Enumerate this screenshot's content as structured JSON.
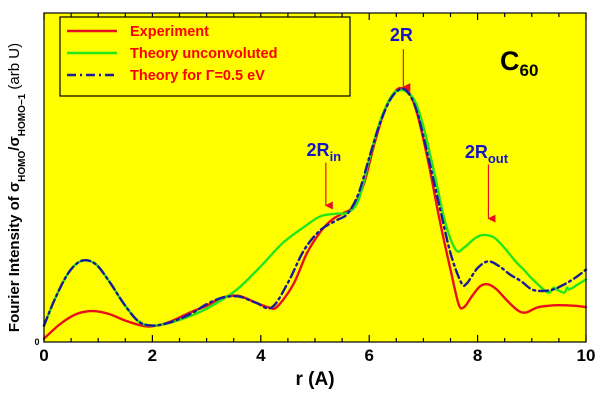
{
  "colors": {
    "plot_background": "#ffff00",
    "experiment": "#e8101c",
    "theory_unconvoluted": "#22e61a",
    "theory_convoluted": "#1a1a9a",
    "annotation_text": "#1515c8",
    "arrow": "#e8101c",
    "legend_text": "#ff0000"
  },
  "chart_data": {
    "type": "line",
    "title": "",
    "xlabel": "r (A)",
    "ylabel": {
      "prefix": "Fourier Intensity of σ",
      "sub1": "HOMO",
      "slash": "/σ",
      "sub2": "HOMO−1",
      "suffix": " (arb U)"
    },
    "xlim": [
      0,
      10
    ],
    "ylim": [
      0,
      1.0
    ],
    "x_ticks": [
      "0",
      "2",
      "4",
      "6",
      "8",
      "10"
    ],
    "y_tick_labels": [
      "0"
    ],
    "grid": false,
    "legend_position": "top-left",
    "legend": [
      "Experiment",
      "Theory unconvoluted",
      "Theory for Γ=0.5 eV"
    ],
    "molecule_label": {
      "main": "C",
      "sub": "60"
    },
    "annotations": [
      {
        "main": "2R",
        "sub": "",
        "x": 6.63,
        "y_text": 0.915,
        "arrow_from": 0.89,
        "arrow_to": 0.775
      },
      {
        "main": "2R",
        "sub": "in",
        "x": 5.2,
        "y_text": 0.565,
        "arrow_from": 0.545,
        "arrow_to": 0.415
      },
      {
        "main": "2R",
        "sub": "out",
        "x": 8.2,
        "y_text": 0.56,
        "arrow_from": 0.54,
        "arrow_to": 0.375
      }
    ],
    "series": [
      {
        "name": "Experiment",
        "style": "solid",
        "points": [
          [
            0,
            0.01
          ],
          [
            0.3,
            0.055
          ],
          [
            0.6,
            0.085
          ],
          [
            0.9,
            0.094
          ],
          [
            1.2,
            0.085
          ],
          [
            1.5,
            0.065
          ],
          [
            1.8,
            0.05
          ],
          [
            2.0,
            0.048
          ],
          [
            2.3,
            0.06
          ],
          [
            2.7,
            0.09
          ],
          [
            3.0,
            0.11
          ],
          [
            3.3,
            0.136
          ],
          [
            3.6,
            0.14
          ],
          [
            3.9,
            0.12
          ],
          [
            4.15,
            0.105
          ],
          [
            4.3,
            0.107
          ],
          [
            4.6,
            0.175
          ],
          [
            4.85,
            0.27
          ],
          [
            5.1,
            0.335
          ],
          [
            5.3,
            0.37
          ],
          [
            5.5,
            0.39
          ],
          [
            5.7,
            0.41
          ],
          [
            5.9,
            0.48
          ],
          [
            6.1,
            0.605
          ],
          [
            6.3,
            0.71
          ],
          [
            6.5,
            0.765
          ],
          [
            6.63,
            0.77
          ],
          [
            6.75,
            0.755
          ],
          [
            6.9,
            0.685
          ],
          [
            7.1,
            0.54
          ],
          [
            7.3,
            0.37
          ],
          [
            7.5,
            0.22
          ],
          [
            7.65,
            0.115
          ],
          [
            7.75,
            0.106
          ],
          [
            7.9,
            0.14
          ],
          [
            8.05,
            0.17
          ],
          [
            8.2,
            0.175
          ],
          [
            8.35,
            0.16
          ],
          [
            8.55,
            0.125
          ],
          [
            8.75,
            0.095
          ],
          [
            8.9,
            0.09
          ],
          [
            9.1,
            0.105
          ],
          [
            9.3,
            0.11
          ],
          [
            9.5,
            0.112
          ],
          [
            9.8,
            0.11
          ],
          [
            10.0,
            0.106
          ]
        ]
      },
      {
        "name": "Theory unconvoluted",
        "style": "solid",
        "points": [
          [
            0,
            0.05
          ],
          [
            0.2,
            0.13
          ],
          [
            0.45,
            0.21
          ],
          [
            0.7,
            0.247
          ],
          [
            0.95,
            0.237
          ],
          [
            1.2,
            0.185
          ],
          [
            1.5,
            0.11
          ],
          [
            1.75,
            0.062
          ],
          [
            2.0,
            0.05
          ],
          [
            2.4,
            0.062
          ],
          [
            2.9,
            0.093
          ],
          [
            3.3,
            0.13
          ],
          [
            3.6,
            0.165
          ],
          [
            4.0,
            0.23
          ],
          [
            4.4,
            0.3
          ],
          [
            4.8,
            0.35
          ],
          [
            5.1,
            0.382
          ],
          [
            5.4,
            0.39
          ],
          [
            5.6,
            0.393
          ],
          [
            5.8,
            0.43
          ],
          [
            6.0,
            0.555
          ],
          [
            6.2,
            0.67
          ],
          [
            6.4,
            0.745
          ],
          [
            6.55,
            0.765
          ],
          [
            6.7,
            0.76
          ],
          [
            6.85,
            0.73
          ],
          [
            7.0,
            0.655
          ],
          [
            7.2,
            0.515
          ],
          [
            7.4,
            0.365
          ],
          [
            7.6,
            0.28
          ],
          [
            7.75,
            0.287
          ],
          [
            7.95,
            0.315
          ],
          [
            8.1,
            0.325
          ],
          [
            8.3,
            0.318
          ],
          [
            8.5,
            0.285
          ],
          [
            8.7,
            0.245
          ],
          [
            8.85,
            0.22
          ],
          [
            9.05,
            0.185
          ],
          [
            9.3,
            0.15
          ],
          [
            9.4,
            0.165
          ],
          [
            9.45,
            0.16
          ],
          [
            9.6,
            0.15
          ],
          [
            9.65,
            0.165
          ],
          [
            9.7,
            0.16
          ],
          [
            9.85,
            0.175
          ],
          [
            10.0,
            0.19
          ]
        ]
      },
      {
        "name": "Theory for Γ=0.5 eV",
        "style": "dashdot",
        "points": [
          [
            0,
            0.05
          ],
          [
            0.2,
            0.13
          ],
          [
            0.45,
            0.21
          ],
          [
            0.7,
            0.247
          ],
          [
            0.95,
            0.237
          ],
          [
            1.2,
            0.185
          ],
          [
            1.5,
            0.11
          ],
          [
            1.75,
            0.062
          ],
          [
            2.0,
            0.05
          ],
          [
            2.3,
            0.058
          ],
          [
            2.7,
            0.085
          ],
          [
            3.0,
            0.115
          ],
          [
            3.3,
            0.135
          ],
          [
            3.6,
            0.138
          ],
          [
            3.9,
            0.12
          ],
          [
            4.2,
            0.105
          ],
          [
            4.5,
            0.18
          ],
          [
            4.8,
            0.28
          ],
          [
            5.1,
            0.34
          ],
          [
            5.4,
            0.37
          ],
          [
            5.6,
            0.39
          ],
          [
            5.8,
            0.45
          ],
          [
            6.0,
            0.56
          ],
          [
            6.2,
            0.665
          ],
          [
            6.4,
            0.74
          ],
          [
            6.6,
            0.77
          ],
          [
            6.75,
            0.75
          ],
          [
            6.9,
            0.69
          ],
          [
            7.1,
            0.555
          ],
          [
            7.3,
            0.41
          ],
          [
            7.5,
            0.27
          ],
          [
            7.7,
            0.18
          ],
          [
            7.8,
            0.178
          ],
          [
            8.0,
            0.225
          ],
          [
            8.2,
            0.245
          ],
          [
            8.4,
            0.23
          ],
          [
            8.6,
            0.205
          ],
          [
            8.8,
            0.185
          ],
          [
            9.0,
            0.16
          ],
          [
            9.2,
            0.155
          ],
          [
            9.4,
            0.16
          ],
          [
            9.6,
            0.175
          ],
          [
            9.8,
            0.195
          ],
          [
            10.0,
            0.22
          ]
        ]
      }
    ]
  }
}
